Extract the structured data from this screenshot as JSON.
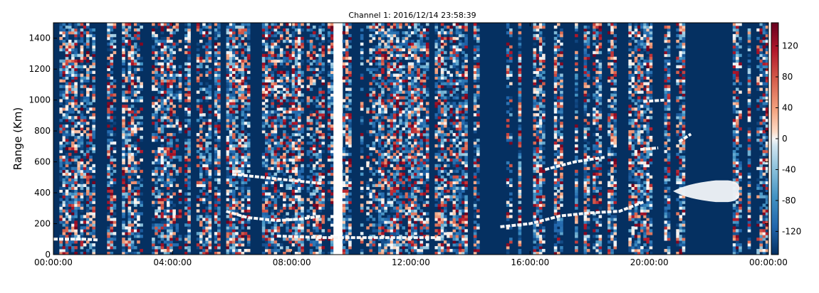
{
  "chart_data": {
    "type": "heatmap",
    "title": "Channel 1: 2016/12/14 23:58:39",
    "xlabel": "",
    "ylabel": "Range (Km)",
    "x_ticks": [
      "00:00:00",
      "04:00:00",
      "08:00:00",
      "12:00:00",
      "16:00:00",
      "20:00:00",
      "00:00:00"
    ],
    "x_range_hours": [
      0,
      24
    ],
    "y_ticks": [
      0,
      200,
      400,
      600,
      800,
      1000,
      1200,
      1400
    ],
    "ylim": [
      0,
      1500
    ],
    "colorbar": {
      "ticks": [
        120,
        80,
        40,
        0,
        -40,
        -80,
        -120
      ],
      "range": [
        -150,
        150
      ],
      "colormap": "RdBu_r",
      "low_color": "#053061",
      "mid_color": "#f7f7f7",
      "high_color": "#67001f"
    },
    "background_value": -150,
    "gaps_hours": [
      [
        9.45,
        9.7
      ]
    ],
    "traces": [
      {
        "x": [
          0.0,
          1.0,
          1.5
        ],
        "y": [
          100,
          100,
          95
        ]
      },
      {
        "x": [
          5.8,
          6.5,
          7.5,
          8.3,
          9.0
        ],
        "y": [
          280,
          240,
          220,
          230,
          250
        ]
      },
      {
        "x": [
          6.0,
          7.0,
          8.0,
          9.0
        ],
        "y": [
          520,
          500,
          480,
          460
        ]
      },
      {
        "x": [
          7.5,
          9.0,
          10.5,
          12.0,
          13.0
        ],
        "y": [
          120,
          110,
          110,
          110,
          110
        ]
      },
      {
        "x": [
          15.0,
          16.0,
          17.0,
          18.0,
          19.0,
          19.8
        ],
        "y": [
          180,
          200,
          250,
          270,
          280,
          340
        ]
      },
      {
        "x": [
          16.5,
          17.5,
          18.5
        ],
        "y": [
          550,
          600,
          630
        ]
      },
      {
        "x": [
          19.8,
          20.5
        ],
        "y": [
          990,
          1000
        ]
      },
      {
        "x": [
          19.7,
          20.3
        ],
        "y": [
          680,
          690
        ]
      },
      {
        "x": [
          21.0,
          21.4
        ],
        "y": [
          730,
          780
        ]
      }
    ],
    "blobs": [
      {
        "x_start": 20.8,
        "x_end": 23.0,
        "y_min": 340,
        "y_max": 480
      }
    ]
  }
}
